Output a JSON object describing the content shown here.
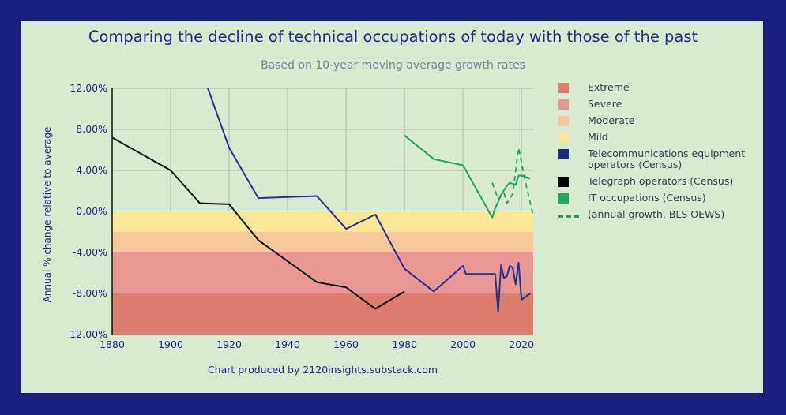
{
  "title": "Comparing the decline of technical occupations of today with those of the past",
  "subtitle": "Based on 10-year moving average growth rates",
  "credit": "Chart produced by 2120insights.substack.com",
  "chart_data": {
    "type": "line",
    "ylabel": "Annual % change relative to average",
    "xlim": [
      1880,
      2024
    ],
    "ylim": [
      -12,
      12
    ],
    "xticks": [
      1880,
      1900,
      1920,
      1940,
      1960,
      1980,
      2000,
      2020
    ],
    "xtick_labels": [
      "1880",
      "1900",
      "1920",
      "1940",
      "1960",
      "1980",
      "2000",
      "2020"
    ],
    "yticks": [
      12,
      8,
      4,
      0,
      -4,
      -8,
      -12
    ],
    "ytick_labels": [
      "12.00%",
      "8.00%",
      "4.00%",
      "0.00%",
      "-4.00%",
      "-8.00%",
      "-12.00%"
    ],
    "grid": true,
    "legend_position": "right",
    "bands": [
      {
        "name": "Mild",
        "from": 0,
        "to": -2,
        "color": "#fde59a"
      },
      {
        "name": "Moderate",
        "from": -2,
        "to": -4,
        "color": "#f8c89b"
      },
      {
        "name": "Severe",
        "from": -4,
        "to": -8,
        "color": "#e99796"
      },
      {
        "name": "Extreme",
        "from": -8,
        "to": -12,
        "color": "#dd7d6b"
      }
    ],
    "legend": [
      {
        "label": "Extreme",
        "color": "#dd7d6b",
        "kind": "box"
      },
      {
        "label": "Severe",
        "color": "#e99796",
        "kind": "box"
      },
      {
        "label": "Moderate",
        "color": "#f8c89b",
        "kind": "box"
      },
      {
        "label": "Mild",
        "color": "#fde59a",
        "kind": "box"
      },
      {
        "label": "Telecommunications equipment operators (Census)",
        "color": "#232a86",
        "kind": "box"
      },
      {
        "label": "Telegraph operators (Census)",
        "color": "#000000",
        "kind": "box"
      },
      {
        "label": "IT occupations (Census)",
        "color": "#1fa55e",
        "kind": "box"
      },
      {
        "label": "(annual growth, BLS OEWS)",
        "color": "#1fa55e",
        "kind": "dash"
      }
    ],
    "series": [
      {
        "name": "Telecommunications equipment operators (Census)",
        "color": "#2b3090",
        "dashed": false,
        "x": [
          1910,
          1920,
          1930,
          1950,
          1960,
          1970,
          1980,
          1990,
          2000,
          2001,
          2011,
          2012,
          2013,
          2014,
          2015,
          2016,
          2017,
          2018,
          2019,
          2020,
          2021,
          2022,
          2023
        ],
        "y": [
          14.2,
          6.2,
          1.3,
          1.5,
          -1.7,
          -0.3,
          -5.6,
          -7.8,
          -5.3,
          -6.1,
          -6.1,
          -9.8,
          -5.2,
          -6.5,
          -6.3,
          -5.3,
          -5.5,
          -7.1,
          -5.0,
          -8.6,
          -8.4,
          -8.2,
          -8.0
        ]
      },
      {
        "name": "Telegraph operators (Census)",
        "color": "#111111",
        "dashed": false,
        "x": [
          1880,
          1900,
          1910,
          1920,
          1930,
          1950,
          1960,
          1970,
          1980
        ],
        "y": [
          7.2,
          4.0,
          0.8,
          0.7,
          -2.8,
          -6.9,
          -7.4,
          -9.5,
          -7.8
        ]
      },
      {
        "name": "IT occupations (Census)",
        "color": "#1fa55e",
        "dashed": false,
        "x": [
          1980,
          1990,
          2000,
          2010,
          2011,
          2013,
          2015,
          2016,
          2017,
          2018,
          2019,
          2020,
          2022,
          2023
        ],
        "y": [
          7.4,
          5.1,
          4.5,
          -0.6,
          0.3,
          1.6,
          2.5,
          2.8,
          2.7,
          2.6,
          3.5,
          3.5,
          3.3,
          3.2
        ]
      },
      {
        "name": "(annual growth, BLS OEWS)",
        "color": "#1fa55e",
        "dashed": true,
        "x": [
          2010,
          2012,
          2014,
          2015,
          2017,
          2019,
          2021,
          2024
        ],
        "y": [
          2.8,
          1.2,
          1.8,
          0.8,
          1.7,
          6.2,
          3.3,
          -0.4
        ]
      }
    ]
  }
}
